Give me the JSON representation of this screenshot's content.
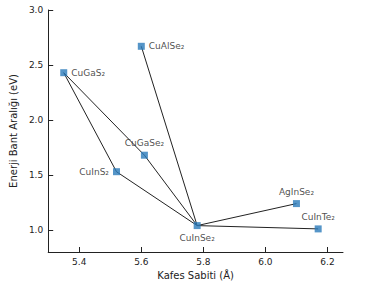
{
  "chart_data": {
    "type": "scatter",
    "x_label": "Kafes Sabiti (Å)",
    "y_label": "Enerji Bant Aralığı (eV)",
    "points": [
      {
        "name": "CuGaS₂",
        "x": 5.35,
        "y": 2.43
      },
      {
        "name": "CuAlSe₂",
        "x": 5.6,
        "y": 2.67
      },
      {
        "name": "CuInS₂",
        "x": 5.52,
        "y": 1.53
      },
      {
        "name": "CuGaSe₂",
        "x": 5.61,
        "y": 1.68
      },
      {
        "name": "CuInSe₂",
        "x": 5.78,
        "y": 1.04
      },
      {
        "name": "AgInSe₂",
        "x": 6.1,
        "y": 1.24
      },
      {
        "name": "CuInTe₂",
        "x": 6.17,
        "y": 1.01
      }
    ],
    "connections": [
      [
        "CuGaS₂",
        "CuInS₂"
      ],
      [
        "CuInS₂",
        "CuInSe₂"
      ],
      [
        "CuGaS₂",
        "CuGaSe₂"
      ],
      [
        "CuGaSe₂",
        "CuInSe₂"
      ],
      [
        "CuAlSe₂",
        "CuInSe₂"
      ],
      [
        "CuInSe₂",
        "AgInSe₂"
      ],
      [
        "CuInSe₂",
        "CuInTe₂"
      ]
    ],
    "color": "#2b7bba",
    "line_color": "#222222",
    "xlim": [
      5.3,
      6.25
    ],
    "xticks": [
      5.4,
      5.6,
      5.8,
      {
        "value": 6.0,
        "label": "6.0"
      },
      6.2
    ],
    "ylim": [
      0.8,
      3.0
    ],
    "yticks": [
      {
        "value": 1.0,
        "label": "1.0"
      },
      1.5,
      {
        "value": 2.0,
        "label": "2.0"
      },
      2.5,
      {
        "value": 3.0,
        "label": "3.0"
      }
    ],
    "data_labels": true,
    "grid": false
  }
}
